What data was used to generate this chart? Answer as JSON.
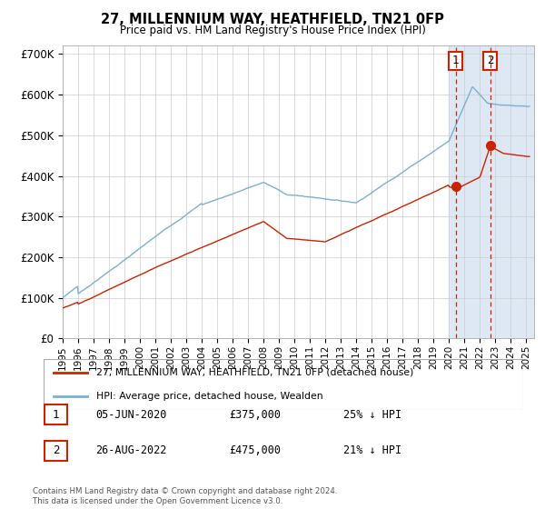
{
  "title": "27, MILLENNIUM WAY, HEATHFIELD, TN21 0FP",
  "subtitle": "Price paid vs. HM Land Registry's House Price Index (HPI)",
  "ylabel_ticks": [
    "£0",
    "£100K",
    "£200K",
    "£300K",
    "£400K",
    "£500K",
    "£600K",
    "£700K"
  ],
  "ylim": [
    0,
    720000
  ],
  "xlim_start": 1995.0,
  "xlim_end": 2025.5,
  "hpi_color": "#7bafd4",
  "price_color": "#cc2200",
  "marker1_x": 2020.43,
  "marker1_y": 375000,
  "marker2_x": 2022.66,
  "marker2_y": 475000,
  "marker1_label": "05-JUN-2020",
  "marker1_price": "£375,000",
  "marker1_hpi": "25% ↓ HPI",
  "marker2_label": "26-AUG-2022",
  "marker2_price": "£475,000",
  "marker2_hpi": "21% ↓ HPI",
  "legend_line1": "27, MILLENNIUM WAY, HEATHFIELD, TN21 0FP (detached house)",
  "legend_line2": "HPI: Average price, detached house, Wealden",
  "footnote": "Contains HM Land Registry data © Crown copyright and database right 2024.\nThis data is licensed under the Open Government Licence v3.0.",
  "shaded_x1": 2020.0,
  "shaded_x2": 2025.5,
  "shaded_color": "#dde8f4"
}
